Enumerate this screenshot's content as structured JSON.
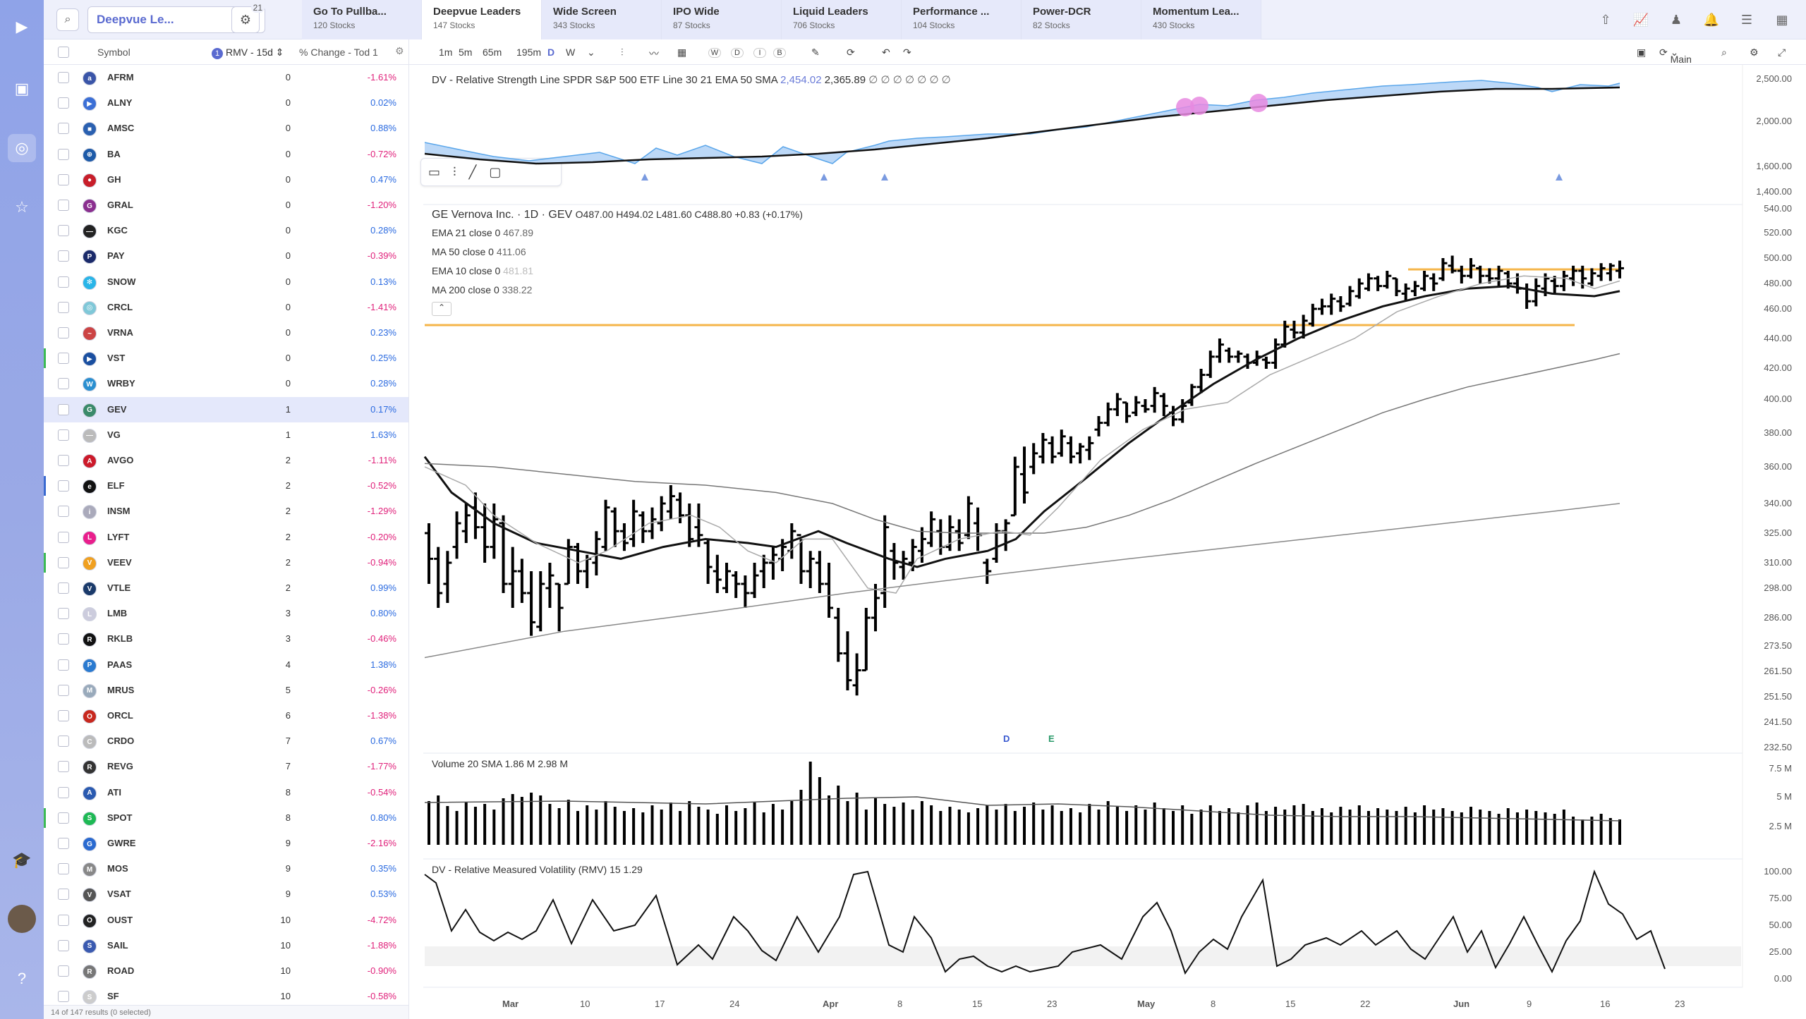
{
  "rail": {
    "icons": [
      "logo-icon",
      "window-icon",
      "radar-icon",
      "star-icon",
      "hat-icon",
      "user-avatar",
      "help-icon"
    ]
  },
  "topbar": {
    "watchlist": "Deepvue Le...",
    "filter_count": "21",
    "tabs": [
      {
        "name": "Go To Pullba...",
        "count": "120 Stocks"
      },
      {
        "name": "Deepvue Leaders",
        "count": "147 Stocks"
      },
      {
        "name": "Wide Screen",
        "count": "343 Stocks"
      },
      {
        "name": "IPO Wide",
        "count": "87 Stocks"
      },
      {
        "name": "Liquid Leaders",
        "count": "706 Stocks"
      },
      {
        "name": "Performance ...",
        "count": "104 Stocks"
      },
      {
        "name": "Power-DCR",
        "count": "82 Stocks"
      },
      {
        "name": "Momentum Lea...",
        "count": "430 Stocks"
      }
    ]
  },
  "watchlist": {
    "col_symbol": "Symbol",
    "col_rmv_num": "1",
    "col_rmv": "RMV - 15d",
    "col_change": "% Change - Tod",
    "col_change_num": "1",
    "footer": "14 of 147 results (0 selected)",
    "rows": [
      {
        "sym": "AFRM",
        "rmv": "0",
        "chg": "-1.61%",
        "neg": true,
        "logo": "#3a55a8",
        "lt": "a"
      },
      {
        "sym": "ALNY",
        "rmv": "0",
        "chg": "0.02%",
        "neg": false,
        "logo": "#3b6fd6",
        "lt": "▶"
      },
      {
        "sym": "AMSC",
        "rmv": "0",
        "chg": "0.88%",
        "neg": false,
        "logo": "#2a60b0",
        "lt": "■"
      },
      {
        "sym": "BA",
        "rmv": "0",
        "chg": "-0.72%",
        "neg": true,
        "logo": "#1d5aa8",
        "lt": "⊕"
      },
      {
        "sym": "GH",
        "rmv": "0",
        "chg": "0.47%",
        "neg": false,
        "logo": "#c81e2a",
        "lt": "●"
      },
      {
        "sym": "GRAL",
        "rmv": "0",
        "chg": "-1.20%",
        "neg": true,
        "logo": "#8b2f8f",
        "lt": "G"
      },
      {
        "sym": "KGC",
        "rmv": "0",
        "chg": "0.28%",
        "neg": false,
        "logo": "#222",
        "lt": "—"
      },
      {
        "sym": "PAY",
        "rmv": "0",
        "chg": "-0.39%",
        "neg": true,
        "logo": "#1a2a6a",
        "lt": "P"
      },
      {
        "sym": "SNOW",
        "rmv": "0",
        "chg": "0.13%",
        "neg": false,
        "logo": "#29b5e8",
        "lt": "✻"
      },
      {
        "sym": "CRCL",
        "rmv": "0",
        "chg": "-1.41%",
        "neg": true,
        "logo": "#7fc8d8",
        "lt": "◎"
      },
      {
        "sym": "VRNA",
        "rmv": "0",
        "chg": "0.23%",
        "neg": false,
        "logo": "#c44",
        "lt": "~"
      },
      {
        "sym": "VST",
        "rmv": "0",
        "chg": "0.25%",
        "neg": false,
        "logo": "#1a4fa0",
        "lt": "▶",
        "mark": "#3cba54"
      },
      {
        "sym": "WRBY",
        "rmv": "0",
        "chg": "0.28%",
        "neg": false,
        "logo": "#2a8fd0",
        "lt": "W"
      },
      {
        "sym": "GEV",
        "rmv": "1",
        "chg": "0.17%",
        "neg": false,
        "logo": "#3a8a6a",
        "lt": "G",
        "sel": true
      },
      {
        "sym": "VG",
        "rmv": "1",
        "chg": "1.63%",
        "neg": false,
        "logo": "#bbb",
        "lt": "—"
      },
      {
        "sym": "AVGO",
        "rmv": "2",
        "chg": "-1.11%",
        "neg": true,
        "logo": "#cc1a2a",
        "lt": "A"
      },
      {
        "sym": "ELF",
        "rmv": "2",
        "chg": "-0.52%",
        "neg": true,
        "logo": "#111",
        "lt": "e",
        "mark": "#3a6ad0"
      },
      {
        "sym": "INSM",
        "rmv": "2",
        "chg": "-1.29%",
        "neg": true,
        "logo": "#aab",
        "lt": "i"
      },
      {
        "sym": "LYFT",
        "rmv": "2",
        "chg": "-0.20%",
        "neg": true,
        "logo": "#e91e8c",
        "lt": "L"
      },
      {
        "sym": "VEEV",
        "rmv": "2",
        "chg": "-0.94%",
        "neg": true,
        "logo": "#f0a020",
        "lt": "V",
        "mark": "#3cba54"
      },
      {
        "sym": "VTLE",
        "rmv": "2",
        "chg": "0.99%",
        "neg": false,
        "logo": "#1a3a6a",
        "lt": "V"
      },
      {
        "sym": "LMB",
        "rmv": "3",
        "chg": "0.80%",
        "neg": false,
        "logo": "#ccd",
        "lt": "L"
      },
      {
        "sym": "RKLB",
        "rmv": "3",
        "chg": "-0.46%",
        "neg": true,
        "logo": "#111",
        "lt": "R"
      },
      {
        "sym": "PAAS",
        "rmv": "4",
        "chg": "1.38%",
        "neg": false,
        "logo": "#2a7ad0",
        "lt": "P"
      },
      {
        "sym": "MRUS",
        "rmv": "5",
        "chg": "-0.26%",
        "neg": true,
        "logo": "#9ab",
        "lt": "M"
      },
      {
        "sym": "ORCL",
        "rmv": "6",
        "chg": "-1.38%",
        "neg": true,
        "logo": "#c8281e",
        "lt": "O"
      },
      {
        "sym": "CRDO",
        "rmv": "7",
        "chg": "0.67%",
        "neg": false,
        "logo": "#bbb",
        "lt": "C"
      },
      {
        "sym": "REVG",
        "rmv": "7",
        "chg": "-1.77%",
        "neg": true,
        "logo": "#333",
        "lt": "R"
      },
      {
        "sym": "ATI",
        "rmv": "8",
        "chg": "-0.54%",
        "neg": true,
        "logo": "#2a5ab0",
        "lt": "A"
      },
      {
        "sym": "SPOT",
        "rmv": "8",
        "chg": "0.80%",
        "neg": false,
        "logo": "#1db954",
        "lt": "S",
        "mark": "#3cba54"
      },
      {
        "sym": "GWRE",
        "rmv": "9",
        "chg": "-2.16%",
        "neg": true,
        "logo": "#2a6ad0",
        "lt": "G"
      },
      {
        "sym": "MOS",
        "rmv": "9",
        "chg": "0.35%",
        "neg": false,
        "logo": "#888",
        "lt": "M"
      },
      {
        "sym": "VSAT",
        "rmv": "9",
        "chg": "0.53%",
        "neg": false,
        "logo": "#555",
        "lt": "V"
      },
      {
        "sym": "OUST",
        "rmv": "10",
        "chg": "-4.72%",
        "neg": true,
        "logo": "#222",
        "lt": "O"
      },
      {
        "sym": "SAIL",
        "rmv": "10",
        "chg": "-1.88%",
        "neg": true,
        "logo": "#3a5ab0",
        "lt": "S"
      },
      {
        "sym": "ROAD",
        "rmv": "10",
        "chg": "-0.90%",
        "neg": true,
        "logo": "#777",
        "lt": "R"
      },
      {
        "sym": "SF",
        "rmv": "10",
        "chg": "-0.58%",
        "neg": true,
        "logo": "#ccc",
        "lt": "S"
      }
    ]
  },
  "toolbar": {
    "tf": [
      "1m",
      "5m",
      "65m",
      "195m",
      "D",
      "W"
    ],
    "periods": [
      "W",
      "D",
      "I",
      "B"
    ],
    "layout": "Main"
  },
  "chart": {
    "rs_legend": "DV - Relative Strength Line SPDR S&P 500 ETF Line 30 21 EMA 50 SMA",
    "rs_v1": "2,454.02",
    "rs_v2": "2,365.89",
    "rs_dots": "∅ ∅ ∅ ∅ ∅ ∅ ∅",
    "title": "GE Vernova Inc. · 1D · GEV",
    "ohlc": "O487.00  H494.02  L481.60  C488.80  +0.83 (+0.17%)",
    "ma": [
      {
        "label": "EMA 21 close 0",
        "val": "467.89"
      },
      {
        "label": "MA 50 close 0",
        "val": "411.06"
      },
      {
        "label": "EMA 10 close 0",
        "val": "481.81"
      },
      {
        "label": "MA 200 close 0",
        "val": "338.22"
      }
    ],
    "vol_legend": "Volume 20 SMA",
    "vol_v1": "1.86 M",
    "vol_v2": "2.98 M",
    "rmv_legend": "DV - Relative Measured Volatility (RMV) 15",
    "rmv_v": "1.29",
    "markers": [
      "D",
      "E"
    ],
    "rs_axis": [
      "2,500.00",
      "2,000.00",
      "1,600.00",
      "1,400.00"
    ],
    "price_axis": [
      "540.00",
      "520.00",
      "500.00",
      "480.00",
      "460.00",
      "440.00",
      "420.00",
      "400.00",
      "380.00",
      "360.00",
      "340.00",
      "325.00",
      "310.00",
      "298.00",
      "286.00",
      "273.50",
      "261.50",
      "251.50",
      "241.50",
      "232.50"
    ],
    "vol_axis": [
      "7.5 M",
      "5 M",
      "2.5 M"
    ],
    "rmv_axis": [
      "100.00",
      "75.00",
      "50.00",
      "25.00",
      "0.00"
    ],
    "x_axis": [
      "Mar",
      "10",
      "17",
      "24",
      "Apr",
      "8",
      "15",
      "23",
      "May",
      "8",
      "15",
      "22",
      "Jun",
      "9",
      "16",
      "23"
    ]
  }
}
